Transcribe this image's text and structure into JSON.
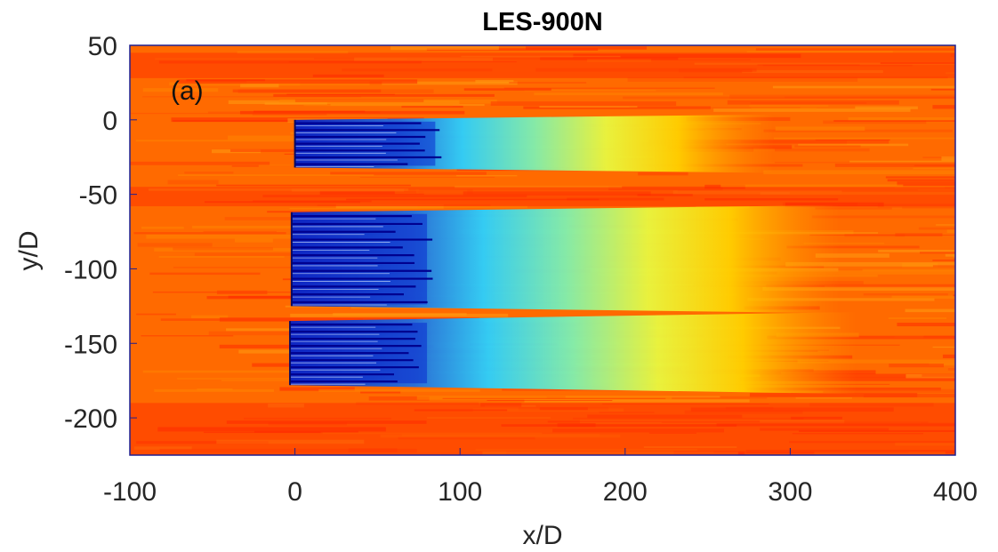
{
  "chart_data": {
    "type": "heatmap",
    "title": "LES-900N",
    "xlabel": "x/D",
    "ylabel": "y/D",
    "xlim": [
      -100,
      400
    ],
    "ylim": [
      -225,
      50
    ],
    "xticks": [
      -100,
      0,
      100,
      200,
      300,
      400
    ],
    "yticks": [
      50,
      0,
      -50,
      -100,
      -150,
      -200
    ],
    "xtick_labels": [
      "-100",
      "0",
      "100",
      "200",
      "300",
      "400"
    ],
    "ytick_labels": [
      "50",
      "0",
      "-50",
      "-100",
      "-150",
      "-200"
    ],
    "annotation": "(a)",
    "colormap": "jet",
    "grid": false,
    "turbine_rows": [
      {
        "x_start": 0,
        "y_min": -32,
        "y_max": 0,
        "lines": 7,
        "dark_to_x": 85,
        "wake_to_x": 290
      },
      {
        "x_start": -2,
        "y_min": -125,
        "y_max": -62,
        "lines": 12,
        "dark_to_x": 80,
        "wake_to_x": 330
      },
      {
        "x_start": -3,
        "y_min": -178,
        "y_max": -135,
        "lines": 9,
        "dark_to_x": 80,
        "wake_to_x": 340
      }
    ],
    "colors": {
      "freestream": "#ff6a00",
      "high": "#ff2200",
      "low": "#00008f",
      "frame": "#1f1f8f"
    }
  }
}
